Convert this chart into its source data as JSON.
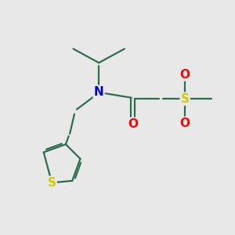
{
  "bg_color": "#e8e8e8",
  "bond_color": "#2d6e4e",
  "N_color": "#0000cc",
  "O_color": "#ff0000",
  "S_color": "#cccc00",
  "line_width": 1.6,
  "font_size_atoms": 11,
  "fig_size": [
    3.0,
    3.0
  ],
  "dpi": 100,
  "xlim": [
    0,
    10
  ],
  "ylim": [
    0,
    10
  ]
}
